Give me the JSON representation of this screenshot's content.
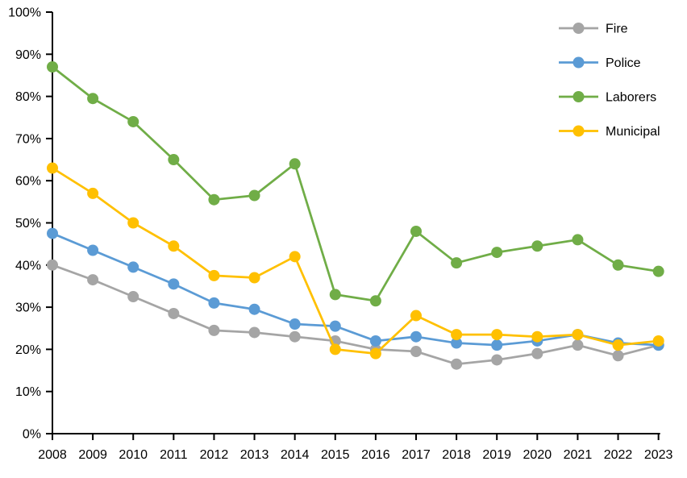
{
  "chart_data": {
    "type": "line",
    "title": "",
    "xlabel": "",
    "ylabel": "",
    "categories": [
      "2008",
      "2009",
      "2010",
      "2011",
      "2012",
      "2013",
      "2014",
      "2015",
      "2016",
      "2017",
      "2018",
      "2019",
      "2020",
      "2021",
      "2022",
      "2023"
    ],
    "series": [
      {
        "name": "Fire",
        "color": "#A5A5A5",
        "values": [
          40,
          36.5,
          32.5,
          28.5,
          24.5,
          24,
          23,
          22,
          20,
          19.5,
          16.5,
          17.5,
          19,
          21,
          18.5,
          21
        ]
      },
      {
        "name": "Police",
        "color": "#5B9BD5",
        "values": [
          47.5,
          43.5,
          39.5,
          35.5,
          31,
          29.5,
          26,
          25.5,
          22,
          23,
          21.5,
          21,
          22,
          23.5,
          21.5,
          21
        ]
      },
      {
        "name": "Laborers",
        "color": "#70AD47",
        "values": [
          87,
          79.5,
          74,
          65,
          55.5,
          56.5,
          64,
          33,
          31.5,
          48,
          40.5,
          43,
          44.5,
          46,
          40,
          38.5
        ]
      },
      {
        "name": "Municipal",
        "color": "#FFC000",
        "values": [
          63,
          57,
          50,
          44.5,
          37.5,
          37,
          42,
          20,
          19,
          28,
          23.5,
          23.5,
          23,
          23.5,
          21,
          22
        ]
      }
    ],
    "ylim": [
      0,
      100
    ],
    "ytick_step": 10,
    "ytick_labels": [
      "0%",
      "10%",
      "20%",
      "30%",
      "40%",
      "50%",
      "60%",
      "70%",
      "80%",
      "90%",
      "100%"
    ],
    "grid": false,
    "legend_position": "top-right-inside",
    "axis_color": "#000000",
    "text_color": "#000000"
  }
}
